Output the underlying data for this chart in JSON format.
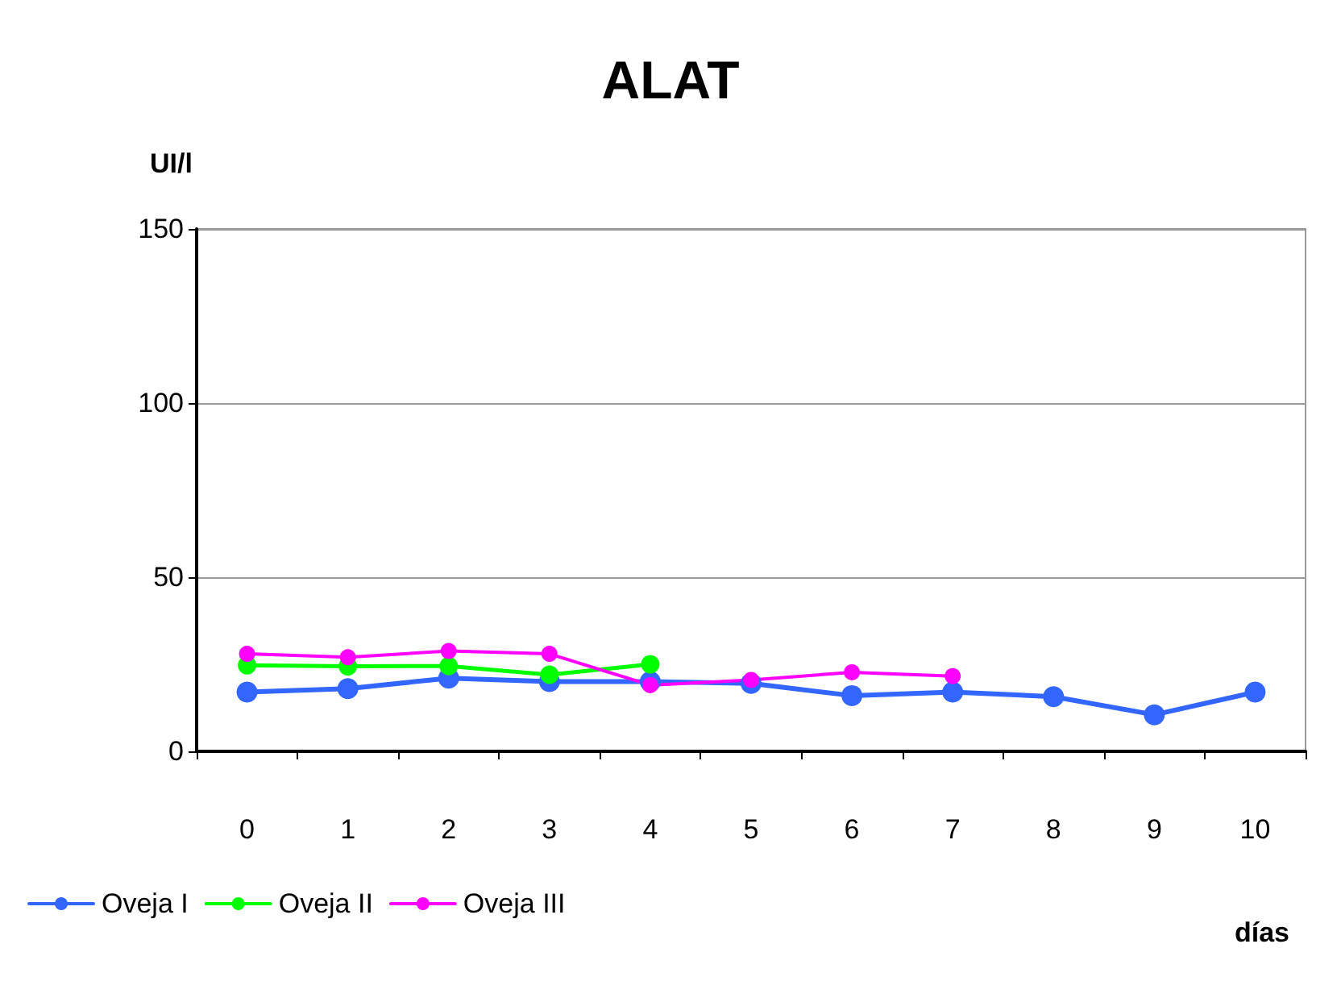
{
  "chart_data": {
    "type": "line",
    "title": "ALAT",
    "ylabel": "UI/l",
    "xlabel": "días",
    "categories": [
      "0",
      "1",
      "2",
      "3",
      "4",
      "5",
      "6",
      "7",
      "8",
      "9",
      "10"
    ],
    "series": [
      {
        "name": "Oveja I",
        "color": "#3366ff",
        "values": [
          17,
          18,
          21,
          20,
          20,
          19.5,
          16,
          17,
          15.7,
          10.5,
          17
        ]
      },
      {
        "name": "Oveja II",
        "color": "#00ff00",
        "values": [
          24.7,
          24.4,
          24.5,
          22,
          25,
          null,
          null,
          null,
          null,
          null,
          null
        ]
      },
      {
        "name": "Oveja III",
        "color": "#ff00ff",
        "values": [
          28,
          27,
          28.8,
          28,
          19,
          20.5,
          22.7,
          21.6,
          null,
          null,
          null
        ]
      }
    ],
    "ylim": [
      0,
      150
    ],
    "yticks": [
      0,
      50,
      100,
      150
    ],
    "grid": "y",
    "legend": "bottom left",
    "marker": "circle",
    "line_style": "solid"
  }
}
